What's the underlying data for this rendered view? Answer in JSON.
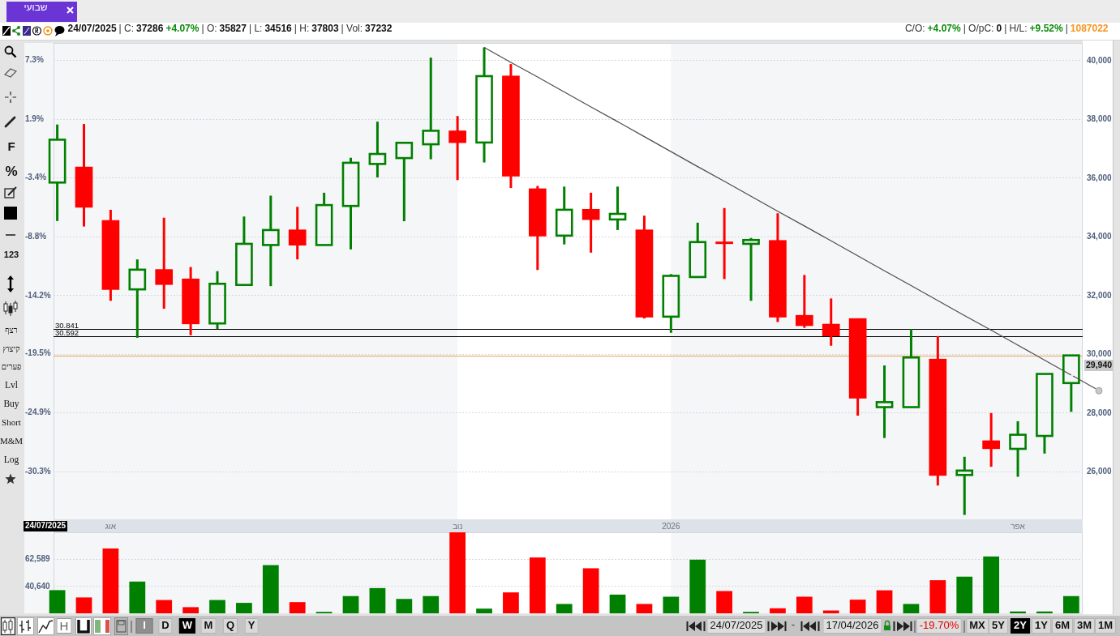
{
  "chart_data": [
    {
      "type": "candlestick",
      "title": "שבועי",
      "categories": [
        null,
        null,
        "אוג",
        null,
        null,
        null,
        null,
        null,
        null,
        null,
        null,
        null,
        null,
        null,
        null,
        "נוב",
        null,
        null,
        null,
        null,
        null,
        null,
        null,
        "2026",
        null,
        null,
        null,
        null,
        null,
        null,
        null,
        null,
        null,
        null,
        null,
        null,
        "אפר",
        null,
        null
      ],
      "series": [
        {
          "type": "candlestick",
          "axis": "y2",
          "ohlc": [
            [
              35827,
              37803,
              34516,
              37286
            ],
            [
              36330,
              37820,
              34330,
              35010
            ],
            [
              34510,
              34900,
              31800,
              32210
            ],
            [
              32190,
              33210,
              30540,
              32860
            ],
            [
              32840,
              34630,
              31530,
              32380
            ],
            [
              32520,
              32950,
              30630,
              31040
            ],
            [
              31030,
              32810,
              30840,
              32380
            ],
            [
              32340,
              34670,
              32340,
              33740
            ],
            [
              33700,
              35380,
              32300,
              34210
            ],
            [
              34190,
              35000,
              33210,
              33720
            ],
            [
              33700,
              35480,
              33700,
              35060
            ],
            [
              35030,
              36670,
              33550,
              36500
            ],
            [
              36460,
              37900,
              36000,
              36800
            ],
            [
              36660,
              37180,
              34510,
              37180
            ],
            [
              37130,
              40080,
              36620,
              37590
            ],
            [
              37560,
              38090,
              35910,
              37210
            ],
            [
              37190,
              40430,
              36510,
              39450
            ],
            [
              39430,
              39860,
              35640,
              36070
            ],
            [
              35590,
              35710,
              32850,
              34030
            ],
            [
              34020,
              35690,
              33720,
              34900
            ],
            [
              34890,
              35480,
              33440,
              34590
            ],
            [
              34570,
              35690,
              34210,
              34760
            ],
            [
              34190,
              34700,
              31200,
              31270
            ],
            [
              31260,
              32710,
              30710,
              32650
            ],
            [
              32610,
              34460,
              32610,
              33800
            ],
            [
              33780,
              34960,
              32540,
              33770
            ],
            [
              33740,
              33940,
              31800,
              33870
            ],
            [
              33830,
              34780,
              31080,
              31270
            ],
            [
              31280,
              32680,
              30880,
              30980
            ],
            [
              30980,
              31880,
              30270,
              30630
            ],
            [
              31170,
              31170,
              27890,
              28510
            ],
            [
              28180,
              29600,
              27130,
              28350
            ],
            [
              28180,
              30840,
              28180,
              29870
            ],
            [
              29790,
              30600,
              25510,
              25880
            ],
            [
              25870,
              26490,
              24510,
              26020
            ],
            [
              27010,
              27980,
              26150,
              26790
            ],
            [
              26760,
              27700,
              25810,
              27240
            ],
            [
              27200,
              29310,
              26600,
              29310
            ],
            [
              29000,
              29940,
              28020,
              29940
            ]
          ],
          "colors": [
            "#008000",
            "#ff0000",
            "#ff0000",
            "#008000",
            "#ff0000",
            "#ff0000",
            "#008000",
            "#008000",
            "#008000",
            "#ff0000",
            "#008000",
            "#008000",
            "#008000",
            "#008000",
            "#008000",
            "#ff0000",
            "#008000",
            "#ff0000",
            "#ff0000",
            "#008000",
            "#ff0000",
            "#008000",
            "#ff0000",
            "#008000",
            "#008000",
            "#ff0000",
            "#008000",
            "#ff0000",
            "#ff0000",
            "#ff0000",
            "#ff0000",
            "#008000",
            "#008000",
            "#ff0000",
            "#008000",
            "#ff0000",
            "#008000",
            "#008000",
            "#008000"
          ]
        },
        {
          "type": "line",
          "axis": "y2",
          "values": [
            null,
            null,
            null,
            null,
            null,
            null,
            null,
            null,
            null,
            null,
            null,
            null,
            null,
            null,
            null,
            null,
            40430,
            39920,
            39420,
            38910,
            38400,
            37900,
            37390,
            36880,
            36370,
            35870,
            35360,
            34850,
            34350,
            33840,
            33330,
            32820,
            32320,
            31810,
            31300,
            30800,
            30290,
            29780,
            29270
          ],
          "color": "#4d4d4d"
        }
      ],
      "ylim": [
        -34.67,
        8.83
      ],
      "yticks": [
        {
          "value": 7.3,
          "label": "7.3%"
        },
        {
          "value": 1.9,
          "label": "1.9%"
        },
        {
          "value": -3.4,
          "label": "-3.4%"
        },
        {
          "value": -8.8,
          "label": "-8.8%"
        },
        {
          "value": -14.2,
          "label": "-14.2%"
        },
        {
          "value": -19.5,
          "label": "-19.5%"
        },
        {
          "value": -24.9,
          "label": "-24.9%"
        },
        {
          "value": -30.3,
          "label": "-30.3%"
        }
      ],
      "y2lim": [
        24360,
        40580
      ],
      "y2ticks": [
        {
          "value": 40000,
          "label": "40,000"
        },
        {
          "value": 38000,
          "label": "38,000"
        },
        {
          "value": 36000,
          "label": "36,000"
        },
        {
          "value": 34000,
          "label": "34,000"
        },
        {
          "value": 32000,
          "label": "32,000"
        },
        {
          "value": 30000,
          "label": "30,000"
        },
        {
          "value": 28000,
          "label": "28,000"
        },
        {
          "value": 26000,
          "label": "26,000"
        }
      ],
      "grid": "y",
      "bands": [
        {
          "axis": "x",
          "from": "נוב",
          "to": "2026",
          "color": "#ffffff"
        }
      ],
      "ref_lines": [
        {
          "axis": "y2",
          "value": 30841,
          "color": "#000000"
        },
        {
          "axis": "y2",
          "value": 30592,
          "color": "#000000"
        },
        {
          "axis": "y2",
          "value": 29940,
          "label": "29,940",
          "color": "#f0a050"
        }
      ],
      "annotations": [
        "24/07/2025",
        "| C:",
        "37286",
        "+4.07%",
        "| O:",
        "35827",
        "| L:",
        "34516",
        "| H:",
        "37803",
        "| Vol:",
        "37232",
        "C/O:",
        "+4.07%",
        "| O/pC:",
        "0",
        "| H/L:",
        "+9.52%",
        "|",
        "1087022",
        "F",
        "%",
        "123",
        "רצף",
        "קיצוץ",
        "פערים",
        "Lvl",
        "Buy",
        "Short",
        "M&M",
        "Log",
        "H",
        "I",
        "D",
        "W",
        "M",
        "Q",
        "Y",
        "24/07/2025",
        "-",
        "17/04/2026",
        "-19.70%",
        "MX",
        "5Y",
        "2Y",
        "1Y",
        "6M",
        "3M",
        "1M",
        "24/07/2025",
        "30.841",
        "30.592"
      ]
    },
    {
      "type": "bar",
      "categories": [
        null,
        null,
        "אוג",
        null,
        null,
        null,
        null,
        null,
        null,
        null,
        null,
        null,
        null,
        null,
        null,
        "נוב",
        null,
        null,
        null,
        null,
        null,
        null,
        null,
        "2026",
        null,
        null,
        null,
        null,
        null,
        null,
        null,
        null,
        null,
        null,
        null,
        null,
        "אפר",
        null,
        null
      ],
      "values": [
        37232,
        31300,
        71100,
        44200,
        29200,
        23400,
        29200,
        26900,
        57600,
        27500,
        19600,
        32400,
        38900,
        30100,
        32400,
        84200,
        22200,
        35400,
        63800,
        26000,
        55000,
        33600,
        26000,
        31900,
        62000,
        36500,
        19600,
        22500,
        31900,
        20700,
        29500,
        37100,
        26000,
        45300,
        48200,
        64600,
        19900,
        19900,
        32400
      ],
      "colors": [
        "#008000",
        "#ff0000",
        "#ff0000",
        "#008000",
        "#ff0000",
        "#ff0000",
        "#008000",
        "#008000",
        "#008000",
        "#ff0000",
        "#008000",
        "#008000",
        "#008000",
        "#008000",
        "#008000",
        "#ff0000",
        "#008000",
        "#ff0000",
        "#ff0000",
        "#008000",
        "#ff0000",
        "#008000",
        "#ff0000",
        "#008000",
        "#008000",
        "#ff0000",
        "#008000",
        "#ff0000",
        "#ff0000",
        "#ff0000",
        "#ff0000",
        "#ff0000",
        "#008000",
        "#ff0000",
        "#008000",
        "#008000",
        "#008000",
        "#008000",
        "#008000"
      ],
      "ylim": [
        18400,
        84250
      ],
      "yticks": [
        {
          "value": 62589,
          "label": "62,589"
        },
        {
          "value": 40640,
          "label": "40,640"
        }
      ],
      "grid": "y",
      "tick_labels": "y",
      "bands": [
        {
          "axis": "x",
          "from": "נוב",
          "to": "2026",
          "color": "#ffffff"
        }
      ]
    }
  ]
}
